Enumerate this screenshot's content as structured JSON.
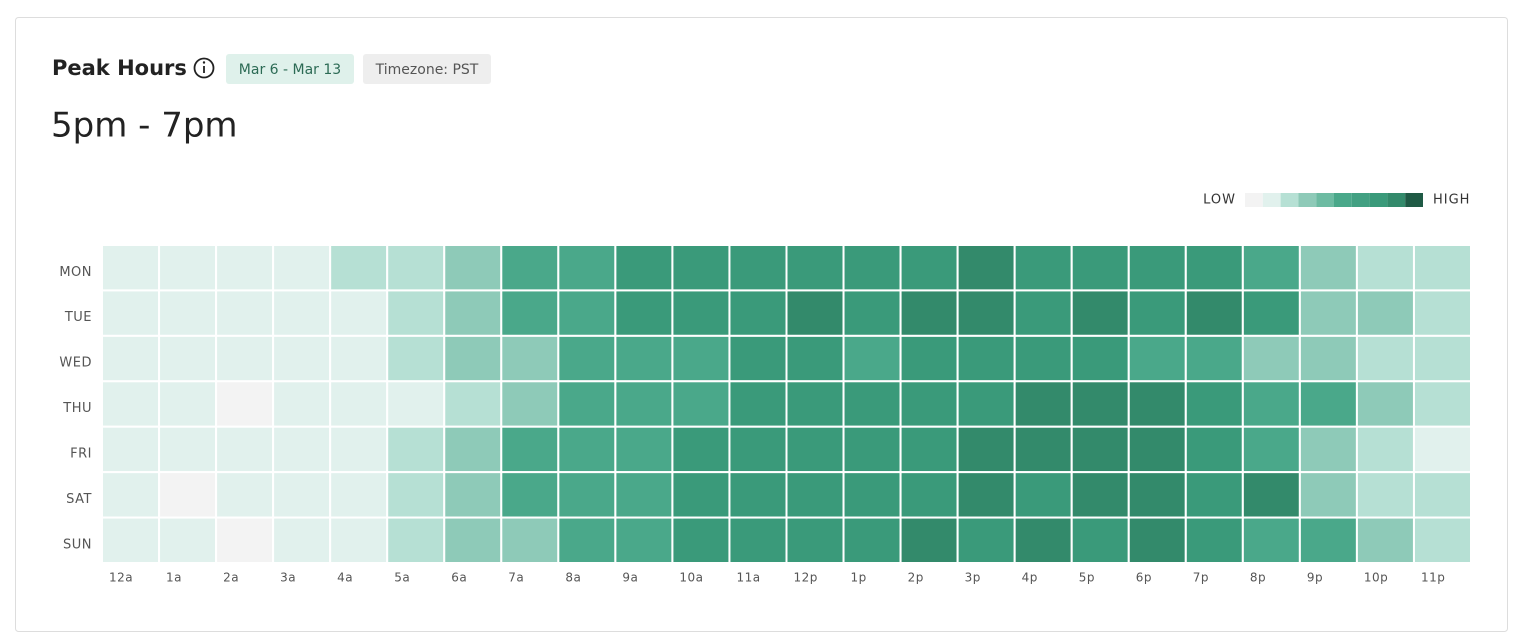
{
  "header": {
    "title": "Peak Hours",
    "date_badge": "Mar 6 - Mar 13",
    "timezone_badge": "Timezone: PST",
    "peak_range": "5pm - 7pm"
  },
  "chart_data": {
    "type": "heatmap",
    "x_categories": [
      "12a",
      "1a",
      "2a",
      "3a",
      "4a",
      "5a",
      "6a",
      "7a",
      "8a",
      "9a",
      "10a",
      "11a",
      "12p",
      "1p",
      "2p",
      "3p",
      "4p",
      "5p",
      "6p",
      "7p",
      "8p",
      "9p",
      "10p",
      "11p"
    ],
    "y_categories": [
      "MON",
      "TUE",
      "WED",
      "THU",
      "FRI",
      "SAT",
      "SUN"
    ],
    "values": [
      [
        1,
        1,
        1,
        1,
        2,
        2,
        3,
        5,
        5,
        7,
        7,
        7,
        7,
        7,
        7,
        8,
        7,
        7,
        7,
        7,
        5,
        3,
        2,
        2
      ],
      [
        1,
        1,
        1,
        1,
        1,
        2,
        3,
        5,
        5,
        7,
        7,
        7,
        8,
        7,
        8,
        8,
        7,
        8,
        7,
        8,
        7,
        3,
        3,
        2
      ],
      [
        1,
        1,
        1,
        1,
        1,
        2,
        3,
        3,
        5,
        5,
        5,
        7,
        7,
        5,
        7,
        7,
        7,
        7,
        5,
        5,
        3,
        3,
        2,
        2
      ],
      [
        1,
        1,
        0,
        1,
        1,
        1,
        2,
        3,
        5,
        5,
        5,
        7,
        7,
        7,
        7,
        7,
        8,
        8,
        8,
        7,
        5,
        5,
        3,
        2
      ],
      [
        1,
        1,
        1,
        1,
        1,
        2,
        3,
        5,
        5,
        5,
        7,
        7,
        7,
        7,
        7,
        8,
        8,
        8,
        8,
        7,
        5,
        3,
        2,
        1
      ],
      [
        1,
        0,
        1,
        1,
        1,
        2,
        3,
        5,
        5,
        5,
        7,
        7,
        7,
        7,
        7,
        8,
        7,
        8,
        8,
        7,
        8,
        3,
        2,
        2
      ],
      [
        1,
        1,
        0,
        1,
        1,
        2,
        3,
        3,
        5,
        5,
        7,
        7,
        7,
        7,
        8,
        7,
        8,
        7,
        8,
        7,
        5,
        5,
        3,
        2
      ]
    ],
    "legend": {
      "low": "LOW",
      "high": "HIGH"
    },
    "colors": [
      "#f3f3f3",
      "#e1f1ed",
      "#b6e0d4",
      "#8ecab8",
      "#6dbba2",
      "#4aa88a",
      "#42a082",
      "#3a9a7a",
      "#338a6b",
      "#1f5a45"
    ]
  }
}
